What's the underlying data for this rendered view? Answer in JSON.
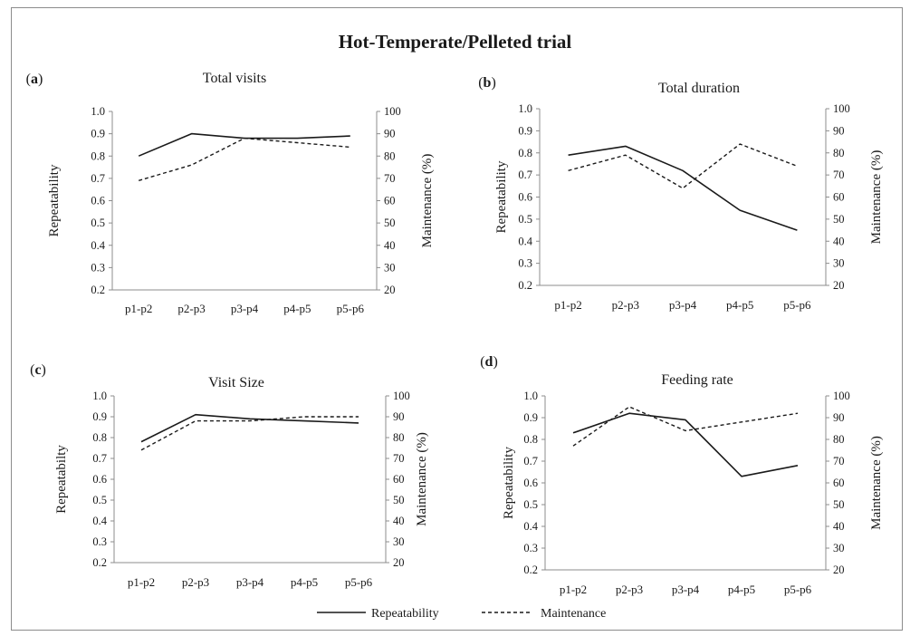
{
  "figure": {
    "title": "Hot-Temperate/Pelleted trial",
    "legend": {
      "items": [
        {
          "name": "Repeatability",
          "style": "solid"
        },
        {
          "name": "Maintenance",
          "style": "dashed"
        }
      ],
      "placement": "bottom-center"
    },
    "colors": {
      "line": "#1a1a1a",
      "axis": "#8c8c8c",
      "frame": "#8c8c8c"
    }
  },
  "chart_data": [
    {
      "panel_label": "(a)",
      "label_letter": "a",
      "type": "line",
      "title": "Total visits",
      "categories": [
        "p1-p2",
        "p2-p3",
        "p3-p4",
        "p4-p5",
        "p5-p6"
      ],
      "ylabel": "Repeatability",
      "y2label": "Maintenance (%)",
      "ylim": [
        0.2,
        1.0
      ],
      "y2lim": [
        20,
        100
      ],
      "yticks": [
        "1.0",
        "0.9",
        "0.8",
        "0.7",
        "0.6",
        "0.5",
        "0.4",
        "0.3",
        "0.2"
      ],
      "y2ticks": [
        "100",
        "90",
        "80",
        "70",
        "60",
        "50",
        "40",
        "30",
        "20"
      ],
      "grid": false,
      "series": [
        {
          "name": "Repeatability",
          "axis": "left",
          "style": "solid",
          "values": [
            0.8,
            0.9,
            0.88,
            0.88,
            0.89
          ]
        },
        {
          "name": "Maintenance",
          "axis": "right",
          "style": "dashed",
          "values": [
            69,
            76,
            88,
            86,
            84
          ]
        }
      ]
    },
    {
      "panel_label": "(b)",
      "label_letter": "b",
      "type": "line",
      "title": "Total duration",
      "categories": [
        "p1-p2",
        "p2-p3",
        "p3-p4",
        "p4-p5",
        "p5-p6"
      ],
      "ylabel": "Repeatability",
      "y2label": "Maintenance (%)",
      "ylim": [
        0.2,
        1.0
      ],
      "y2lim": [
        20,
        100
      ],
      "yticks": [
        "1.0",
        "0.9",
        "0.8",
        "0.7",
        "0.6",
        "0.5",
        "0.4",
        "0.3",
        "0.2"
      ],
      "y2ticks": [
        "100",
        "90",
        "80",
        "70",
        "60",
        "50",
        "40",
        "30",
        "20"
      ],
      "grid": false,
      "series": [
        {
          "name": "Repeatability",
          "axis": "left",
          "style": "solid",
          "values": [
            0.79,
            0.83,
            0.72,
            0.54,
            0.45
          ]
        },
        {
          "name": "Maintenance",
          "axis": "right",
          "style": "dashed",
          "values": [
            72,
            79,
            64,
            84,
            74
          ]
        }
      ]
    },
    {
      "panel_label": "(c)",
      "label_letter": "c",
      "type": "line",
      "title": "Visit Size",
      "categories": [
        "p1-p2",
        "p2-p3",
        "p3-p4",
        "p4-p5",
        "p5-p6"
      ],
      "ylabel": "Repeatabilty",
      "y2label": "Maintenance (%)",
      "ylim": [
        0.2,
        1.0
      ],
      "y2lim": [
        20,
        100
      ],
      "yticks": [
        "1.0",
        "0.9",
        "0.8",
        "0.7",
        "0.6",
        "0.5",
        "0.4",
        "0.3",
        "0.2"
      ],
      "y2ticks": [
        "100",
        "90",
        "80",
        "70",
        "60",
        "50",
        "40",
        "30",
        "20"
      ],
      "grid": false,
      "series": [
        {
          "name": "Repeatability",
          "axis": "left",
          "style": "solid",
          "values": [
            0.78,
            0.91,
            0.89,
            0.88,
            0.87
          ]
        },
        {
          "name": "Maintenance",
          "axis": "right",
          "style": "dashed",
          "values": [
            74,
            88,
            88,
            90,
            90
          ]
        }
      ]
    },
    {
      "panel_label": "(d)",
      "label_letter": "d",
      "type": "line",
      "title": "Feeding rate",
      "categories": [
        "p1-p2",
        "p2-p3",
        "p3-p4",
        "p4-p5",
        "p5-p6"
      ],
      "ylabel": "Repeatability",
      "y2label": "Maintenance (%)",
      "ylim": [
        0.2,
        1.0
      ],
      "y2lim": [
        20,
        100
      ],
      "yticks": [
        "1.0",
        "0.9",
        "0.8",
        "0.7",
        "0.6",
        "0.5",
        "0.4",
        "0.3",
        "0.2"
      ],
      "y2ticks": [
        "100",
        "90",
        "80",
        "70",
        "60",
        "50",
        "40",
        "30",
        "20"
      ],
      "grid": false,
      "series": [
        {
          "name": "Repeatability",
          "axis": "left",
          "style": "solid",
          "values": [
            0.83,
            0.92,
            0.89,
            0.63,
            0.68
          ]
        },
        {
          "name": "Maintenance",
          "axis": "right",
          "style": "dashed",
          "values": [
            77,
            95,
            84,
            88,
            92
          ]
        }
      ]
    }
  ]
}
